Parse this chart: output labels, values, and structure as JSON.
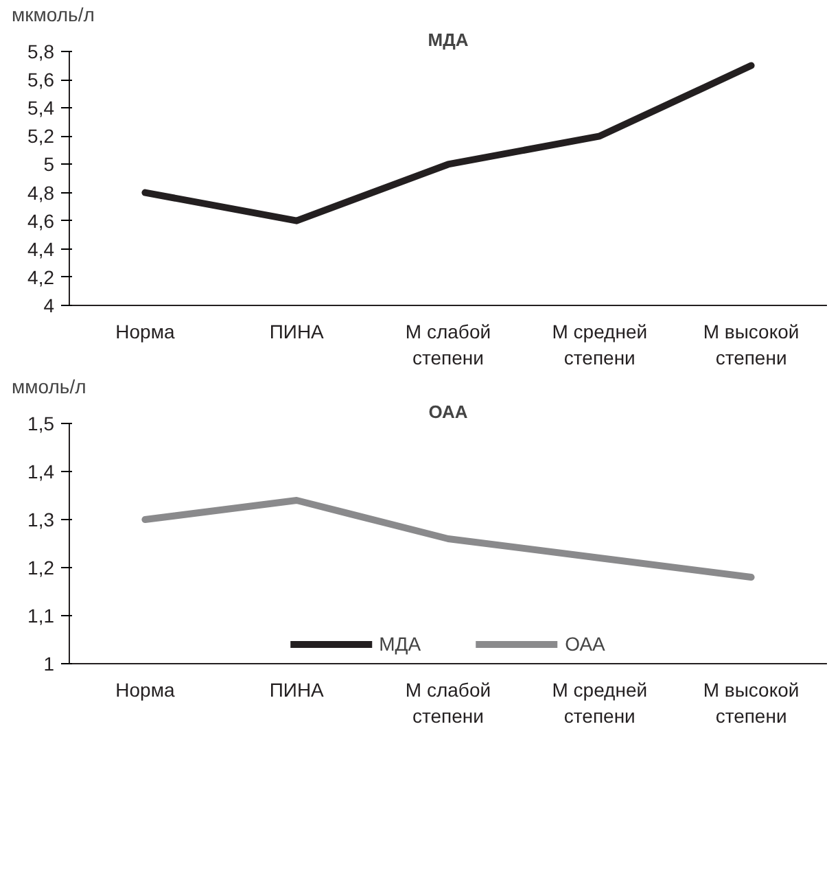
{
  "chart_data": [
    {
      "type": "line",
      "title": "МДА",
      "ylabel": "мкмоль/л",
      "categories": [
        "Норма",
        "ПИНА",
        "М слабой степени",
        "М средней степени",
        "М высокой степени"
      ],
      "series": [
        {
          "name": "МДА",
          "color": "#231f20",
          "values": [
            4.8,
            4.6,
            5.0,
            5.2,
            5.7
          ]
        }
      ],
      "ylim": [
        4,
        5.8
      ],
      "yticks": [
        {
          "value": 4,
          "label": "4"
        },
        {
          "value": 4.2,
          "label": "4,2"
        },
        {
          "value": 4.4,
          "label": "4,4"
        },
        {
          "value": 4.6,
          "label": "4,6"
        },
        {
          "value": 4.8,
          "label": "4,8"
        },
        {
          "value": 5,
          "label": "5"
        },
        {
          "value": 5.2,
          "label": "5,2"
        },
        {
          "value": 5.4,
          "label": "5,4"
        },
        {
          "value": 5.6,
          "label": "5,6"
        },
        {
          "value": 5.8,
          "label": "5,8"
        }
      ],
      "grid": false,
      "legend": "bottom"
    },
    {
      "type": "line",
      "title": "ОАА",
      "ylabel": "ммоль/л",
      "categories": [
        "Норма",
        "ПИНА",
        "М слабой степени",
        "М средней степени",
        "М высокой степени"
      ],
      "series": [
        {
          "name": "ОАА",
          "color": "#8a8a8c",
          "values": [
            1.3,
            1.34,
            1.26,
            1.22,
            1.18
          ]
        }
      ],
      "ylim": [
        1,
        1.5
      ],
      "yticks": [
        {
          "value": 1,
          "label": "1"
        },
        {
          "value": 1.1,
          "label": "1,1"
        },
        {
          "value": 1.2,
          "label": "1,2"
        },
        {
          "value": 1.3,
          "label": "1,3"
        },
        {
          "value": 1.4,
          "label": "1,4"
        },
        {
          "value": 1.5,
          "label": "1,5"
        }
      ],
      "grid": false,
      "legend": "bottom"
    }
  ]
}
